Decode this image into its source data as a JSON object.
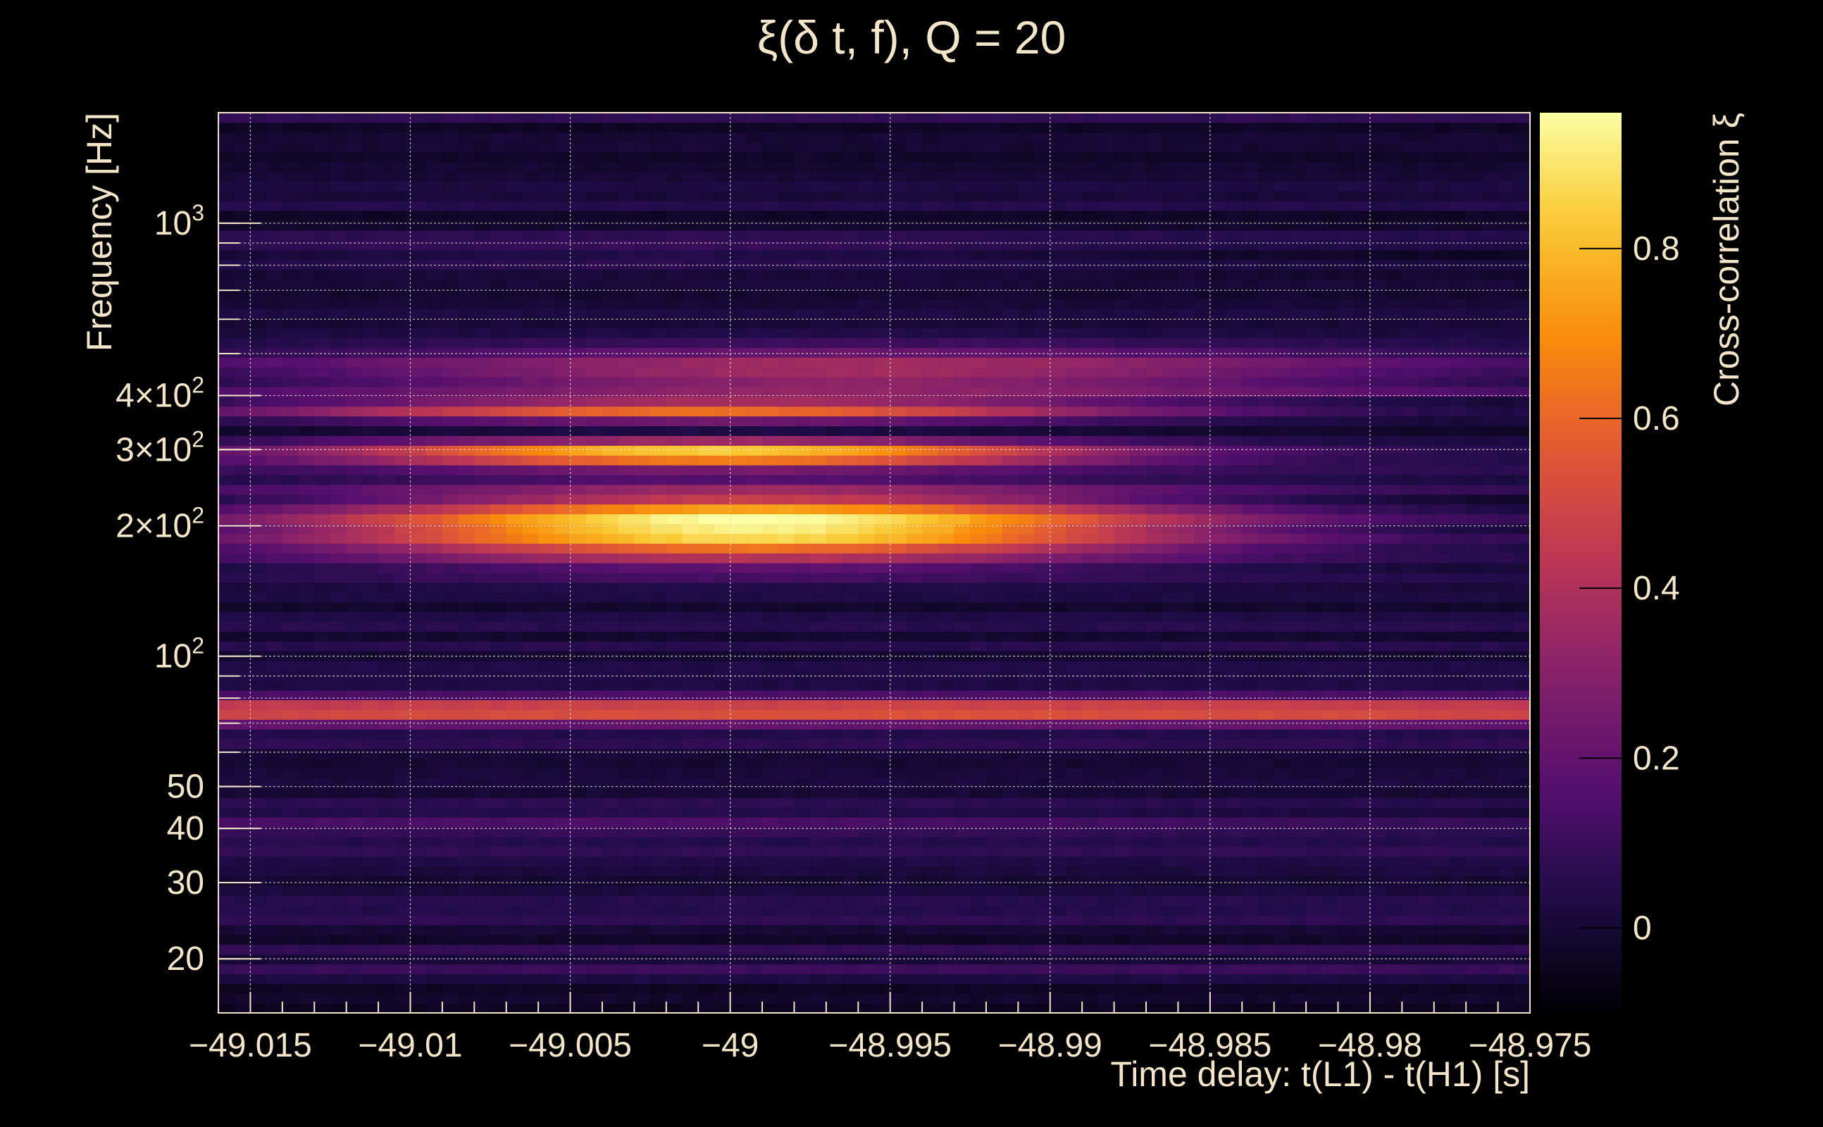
{
  "chart_data": {
    "type": "heatmap",
    "title": "ξ(δ t, f), Q = 20",
    "xlabel": "Time delay: t(L1) - t(H1) [s]",
    "ylabel": "Frequency [Hz]",
    "colorbar_label": "Cross-correlation ξ",
    "xlim": [
      -49.016,
      -48.975
    ],
    "ylim": [
      15,
      1800
    ],
    "yscale": "log",
    "zlim": [
      -0.1,
      0.96
    ],
    "colormap": "inferno",
    "grid": true,
    "x_ticks": [
      {
        "value": -49.015,
        "label": "−49.015"
      },
      {
        "value": -49.01,
        "label": "−49.01"
      },
      {
        "value": -49.005,
        "label": "−49.005"
      },
      {
        "value": -49,
        "label": "−49"
      },
      {
        "value": -48.995,
        "label": "−48.995"
      },
      {
        "value": -48.99,
        "label": "−48.99"
      },
      {
        "value": -48.985,
        "label": "−48.985"
      },
      {
        "value": -48.98,
        "label": "−48.98"
      },
      {
        "value": -48.975,
        "label": "−48.975"
      }
    ],
    "y_ticks": [
      {
        "value": 20,
        "base": "20",
        "exp": ""
      },
      {
        "value": 30,
        "base": "30",
        "exp": ""
      },
      {
        "value": 40,
        "base": "40",
        "exp": ""
      },
      {
        "value": 50,
        "base": "50",
        "exp": ""
      },
      {
        "value": 100,
        "base": "10",
        "exp": "2"
      },
      {
        "value": 200,
        "base": "2×10",
        "exp": "2"
      },
      {
        "value": 300,
        "base": "3×10",
        "exp": "2"
      },
      {
        "value": 400,
        "base": "4×10",
        "exp": "2"
      },
      {
        "value": 1000,
        "base": "10",
        "exp": "3"
      }
    ],
    "colorbar_ticks": [
      {
        "value": 0,
        "label": "0"
      },
      {
        "value": 0.2,
        "label": "0.2"
      },
      {
        "value": 0.4,
        "label": "0.4"
      },
      {
        "value": 0.6,
        "label": "0.6"
      },
      {
        "value": 0.8,
        "label": "0.8"
      }
    ],
    "features": [
      {
        "freq": 200,
        "t_center": -48.9993,
        "peak": 0.96,
        "width_oct": 0.18,
        "t_sigma": 0.0095
      },
      {
        "freq": 295,
        "t_center": -49.0005,
        "peak": 0.82,
        "width_oct": 0.07,
        "t_sigma": 0.0085
      },
      {
        "freq": 370,
        "t_center": -49.001,
        "peak": 0.58,
        "width_oct": 0.06,
        "t_sigma": 0.01
      },
      {
        "freq": 450,
        "t_center": -48.996,
        "peak": 0.38,
        "width_oct": 0.14,
        "t_sigma": 0.013
      },
      {
        "freq": 75,
        "t_center": -48.995,
        "peak": 0.62,
        "width_oct": 0.06,
        "t_sigma": 0.05
      },
      {
        "freq": 42,
        "t_center": -49.005,
        "peak": 0.08,
        "width_oct": 0.08,
        "t_sigma": 0.02
      },
      {
        "freq": 19,
        "t_center": -48.995,
        "peak": 0.12,
        "width_oct": 0.05,
        "t_sigma": 0.05
      },
      {
        "freq": 850,
        "t_center": -49.003,
        "peak": 0.08,
        "width_oct": 0.1,
        "t_sigma": 0.012
      }
    ]
  }
}
